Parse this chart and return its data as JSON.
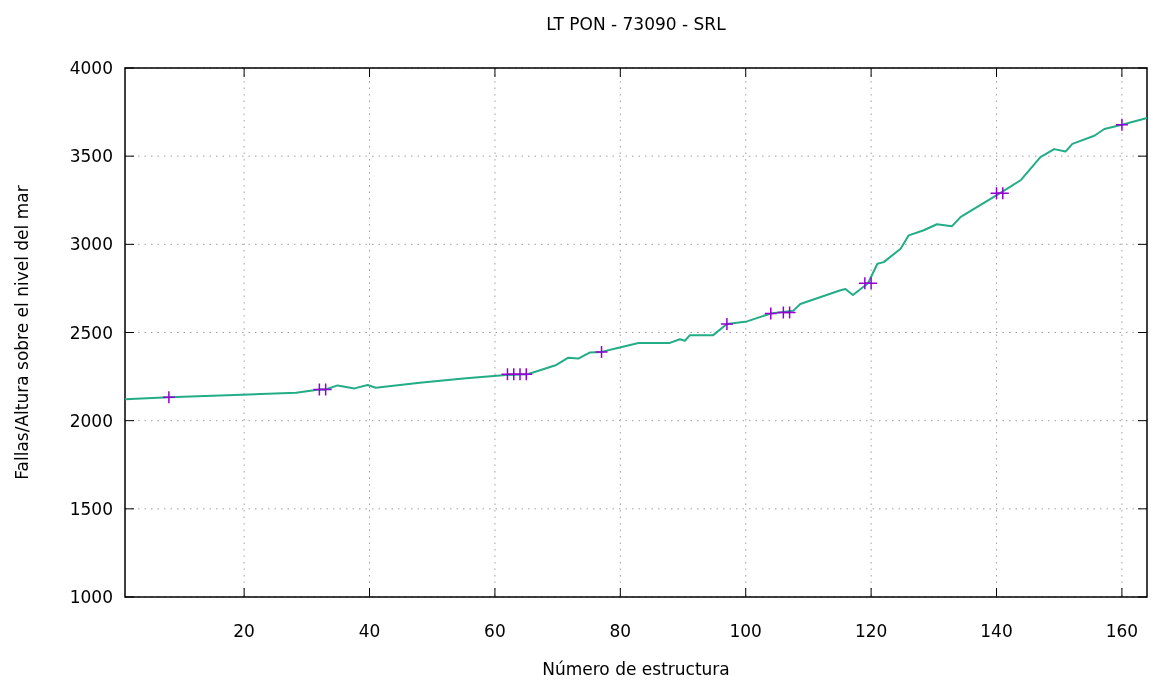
{
  "chart_data": {
    "type": "line",
    "title": "LT PON - 73090 - SRL",
    "xlabel": "Número de estructura",
    "ylabel": "Fallas/Altura sobre el nivel del mar",
    "xlim": [
      1,
      164
    ],
    "ylim": [
      1000,
      4000
    ],
    "xticks": [
      20,
      40,
      60,
      80,
      100,
      120,
      140,
      160
    ],
    "yticks": [
      1000,
      1500,
      2000,
      2500,
      3000,
      3500,
      4000
    ],
    "grid": true,
    "series": [
      {
        "color": "#23ad86",
        "marker": "none",
        "x": [
          1,
          8,
          28.3,
          32,
          33,
          34.9,
          37.6,
          39.7,
          41,
          48,
          55.4,
          61.8,
          65.2,
          69.8,
          71.7,
          73.3,
          75.1,
          77,
          79.9,
          82.9,
          87.9,
          89.5,
          90.3,
          91.1,
          94.8,
          97,
          100.2,
          104,
          107.6,
          108.7,
          115,
          115.9,
          117.1,
          119.5,
          121,
          122,
          124.7,
          126,
          128.4,
          130.5,
          132.9,
          134.3,
          140.5,
          143.9,
          147,
          149.2,
          151,
          152.1,
          155.6,
          157.2,
          160,
          164
        ],
        "values": [
          2122,
          2133,
          2158,
          2177,
          2177,
          2200,
          2183,
          2202,
          2187,
          2215,
          2240,
          2259,
          2263,
          2316,
          2357,
          2352,
          2386,
          2390,
          2415,
          2441,
          2441,
          2462,
          2453,
          2485,
          2485,
          2548,
          2563,
          2608,
          2624,
          2662,
          2738,
          2747,
          2713,
          2779,
          2890,
          2899,
          2975,
          3051,
          3080,
          3114,
          3103,
          3156,
          3289,
          3365,
          3494,
          3540,
          3526,
          3570,
          3616,
          3654,
          3678,
          3716
        ]
      },
      {
        "type": "scatter",
        "color": "#9400d3",
        "marker": "cross",
        "x": [
          8,
          32,
          33,
          62,
          63,
          64,
          65,
          77,
          97,
          104,
          106,
          107,
          119,
          120,
          140,
          141,
          160
        ],
        "values": [
          2133,
          2177,
          2177,
          2263,
          2263,
          2263,
          2263,
          2390,
          2548,
          2608,
          2614,
          2614,
          2779,
          2779,
          3289,
          3289,
          3678
        ]
      }
    ]
  }
}
